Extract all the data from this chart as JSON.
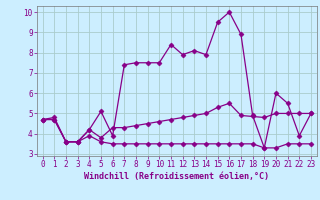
{
  "xlabel": "Windchill (Refroidissement éolien,°C)",
  "bg_color": "#cceeff",
  "grid_color": "#aacccc",
  "line_color": "#880088",
  "xlim": [
    -0.5,
    23.5
  ],
  "ylim": [
    2.9,
    10.3
  ],
  "yticks": [
    3,
    4,
    5,
    6,
    7,
    8,
    9,
    10
  ],
  "xticks": [
    0,
    1,
    2,
    3,
    4,
    5,
    6,
    7,
    8,
    9,
    10,
    11,
    12,
    13,
    14,
    15,
    16,
    17,
    18,
    19,
    20,
    21,
    22,
    23
  ],
  "line1_x": [
    0,
    1,
    2,
    3,
    4,
    5,
    6,
    7,
    8,
    9,
    10,
    11,
    12,
    13,
    14,
    15,
    16,
    17,
    18,
    19,
    20,
    21,
    22,
    23
  ],
  "line1_y": [
    4.7,
    4.8,
    3.6,
    3.6,
    4.2,
    5.1,
    3.9,
    7.4,
    7.5,
    7.5,
    7.5,
    8.4,
    7.9,
    8.1,
    7.9,
    9.5,
    10.0,
    8.9,
    4.9,
    3.3,
    6.0,
    5.5,
    3.9,
    5.0
  ],
  "line2_x": [
    0,
    1,
    2,
    3,
    4,
    5,
    6,
    7,
    8,
    9,
    10,
    11,
    12,
    13,
    14,
    15,
    16,
    17,
    18,
    19,
    20,
    21,
    22,
    23
  ],
  "line2_y": [
    4.7,
    4.7,
    3.6,
    3.6,
    4.2,
    3.8,
    4.3,
    4.3,
    4.4,
    4.5,
    4.6,
    4.7,
    4.8,
    4.9,
    5.0,
    5.3,
    5.5,
    4.9,
    4.85,
    4.8,
    5.0,
    5.0,
    5.0,
    5.0
  ],
  "line3_x": [
    0,
    1,
    2,
    3,
    4,
    5,
    6,
    7,
    8,
    9,
    10,
    11,
    12,
    13,
    14,
    15,
    16,
    17,
    18,
    19,
    20,
    21,
    22,
    23
  ],
  "line3_y": [
    4.7,
    4.7,
    3.6,
    3.6,
    3.9,
    3.6,
    3.5,
    3.5,
    3.5,
    3.5,
    3.5,
    3.5,
    3.5,
    3.5,
    3.5,
    3.5,
    3.5,
    3.5,
    3.5,
    3.3,
    3.3,
    3.5,
    3.5,
    3.5
  ],
  "marker": "D",
  "marker_size": 2.5,
  "linewidth": 0.9,
  "tick_fontsize": 5.5,
  "label_fontsize": 6.0
}
